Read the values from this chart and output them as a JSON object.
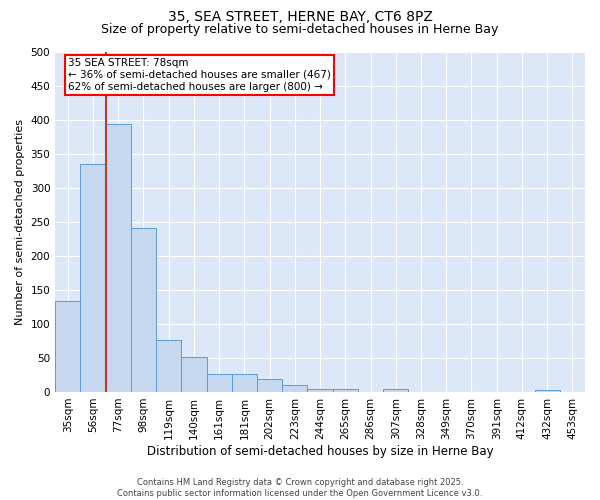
{
  "title": "35, SEA STREET, HERNE BAY, CT6 8PZ",
  "subtitle": "Size of property relative to semi-detached houses in Herne Bay",
  "xlabel": "Distribution of semi-detached houses by size in Herne Bay",
  "ylabel": "Number of semi-detached properties",
  "categories": [
    "35sqm",
    "56sqm",
    "77sqm",
    "98sqm",
    "119sqm",
    "140sqm",
    "161sqm",
    "181sqm",
    "202sqm",
    "223sqm",
    "244sqm",
    "265sqm",
    "286sqm",
    "307sqm",
    "328sqm",
    "349sqm",
    "370sqm",
    "391sqm",
    "412sqm",
    "432sqm",
    "453sqm"
  ],
  "values": [
    133,
    335,
    393,
    241,
    77,
    52,
    27,
    27,
    19,
    10,
    4,
    5,
    0,
    4,
    0,
    0,
    0,
    0,
    0,
    3,
    0
  ],
  "bar_color": "#c5d8f0",
  "bar_edge_color": "#5b9bd5",
  "bg_color": "#dce8f8",
  "grid_color": "#ffffff",
  "annotation_text": "35 SEA STREET: 78sqm\n← 36% of semi-detached houses are smaller (467)\n62% of semi-detached houses are larger (800) →",
  "vline_x": 2,
  "vline_color": "#c0392b",
  "ylim": [
    0,
    500
  ],
  "yticks": [
    0,
    50,
    100,
    150,
    200,
    250,
    300,
    350,
    400,
    450,
    500
  ],
  "footer": "Contains HM Land Registry data © Crown copyright and database right 2025.\nContains public sector information licensed under the Open Government Licence v3.0.",
  "title_fontsize": 10,
  "subtitle_fontsize": 9,
  "xlabel_fontsize": 8.5,
  "ylabel_fontsize": 8,
  "tick_fontsize": 7.5,
  "annotation_fontsize": 7.5,
  "footer_fontsize": 6
}
